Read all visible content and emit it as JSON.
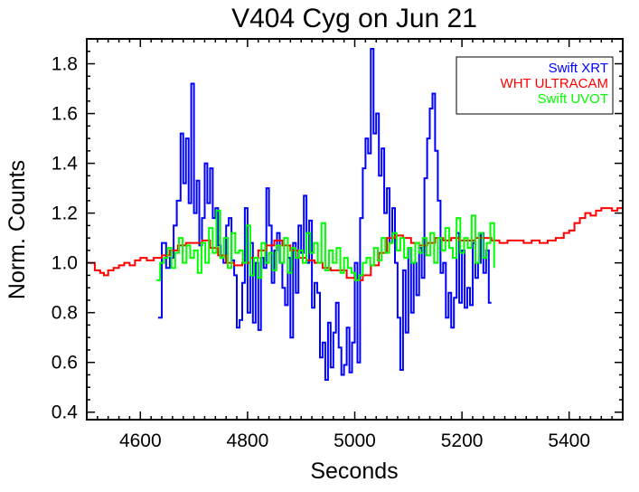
{
  "chart_data": {
    "type": "line",
    "title": "V404 Cyg on Jun 21",
    "xlabel": "Seconds",
    "ylabel": "Norm. Counts",
    "xlim": [
      4500,
      5500
    ],
    "ylim": [
      0.37,
      1.9
    ],
    "xticks": [
      4600,
      4800,
      5000,
      5200,
      5400
    ],
    "yticks": [
      0.4,
      0.6,
      0.8,
      1.0,
      1.2,
      1.4,
      1.6,
      1.8
    ],
    "ytick_labels": [
      "0.4",
      "0.6",
      "0.8",
      "1.0",
      "1.2",
      "1.4",
      "1.6",
      "1.8"
    ],
    "legend": "top-right",
    "grid": false,
    "series": [
      {
        "name": "Swift XRT",
        "color": "#0000ff",
        "step": true,
        "x": [
          4633,
          4640,
          4648,
          4655,
          4662,
          4668,
          4675,
          4680,
          4685,
          4690,
          4695,
          4700,
          4705,
          4710,
          4715,
          4720,
          4725,
          4730,
          4735,
          4740,
          4745,
          4750,
          4755,
          4760,
          4765,
          4770,
          4775,
          4780,
          4785,
          4790,
          4795,
          4800,
          4805,
          4810,
          4815,
          4820,
          4825,
          4830,
          4835,
          4840,
          4845,
          4850,
          4855,
          4860,
          4865,
          4870,
          4875,
          4880,
          4885,
          4890,
          4895,
          4900,
          4905,
          4910,
          4915,
          4920,
          4925,
          4930,
          4935,
          4940,
          4945,
          4950,
          4955,
          4960,
          4965,
          4970,
          4975,
          4980,
          4985,
          4990,
          4995,
          5000,
          5005,
          5010,
          5015,
          5020,
          5025,
          5030,
          5035,
          5040,
          5045,
          5050,
          5055,
          5060,
          5065,
          5070,
          5075,
          5080,
          5085,
          5090,
          5095,
          5100,
          5105,
          5110,
          5115,
          5120,
          5125,
          5130,
          5135,
          5140,
          5145,
          5150,
          5155,
          5160,
          5165,
          5170,
          5175,
          5180,
          5185,
          5190,
          5195,
          5200,
          5205,
          5210,
          5215,
          5220,
          5225,
          5230,
          5235,
          5240,
          5245,
          5250,
          5255
        ],
        "values": [
          0.78,
          1.08,
          0.98,
          1.02,
          1.15,
          1.25,
          1.52,
          1.32,
          1.5,
          1.24,
          1.72,
          1.2,
          1.33,
          1.07,
          1.18,
          1.4,
          1.24,
          1.38,
          1.18,
          1.22,
          1.07,
          1.02,
          1.0,
          1.15,
          1.18,
          1.01,
          0.95,
          0.74,
          0.77,
          0.92,
          1.22,
          0.8,
          1.08,
          0.76,
          1.0,
          0.73,
          1.02,
          0.98,
          1.3,
          1.15,
          0.92,
          1.05,
          1.12,
          1.0,
          0.9,
          0.83,
          1.02,
          0.7,
          1.08,
          0.88,
          1.15,
          1.04,
          1.27,
          1.0,
          1.17,
          0.82,
          0.92,
          0.88,
          0.62,
          0.68,
          0.53,
          0.76,
          0.58,
          0.72,
          0.84,
          0.66,
          0.55,
          0.59,
          0.74,
          0.56,
          0.68,
          1.0,
          0.6,
          1.18,
          1.38,
          1.5,
          1.44,
          1.86,
          1.52,
          1.6,
          1.35,
          1.46,
          1.2,
          1.3,
          1.08,
          1.22,
          1.0,
          0.78,
          0.57,
          0.97,
          0.72,
          1.06,
          0.8,
          1.0,
          0.87,
          1.06,
          0.94,
          1.34,
          1.5,
          1.62,
          1.68,
          1.45,
          1.25,
          0.96,
          1.0,
          0.78,
          0.88,
          0.74,
          0.86,
          1.12,
          0.84,
          1.05,
          0.82,
          0.9,
          0.83,
          1.08,
          0.94,
          1.0,
          1.12,
          0.96,
          1.05,
          0.84,
          0.84
        ]
      },
      {
        "name": "WHT ULTRACAM",
        "color": "#ff0000",
        "step": true,
        "x": [
          4500,
          4515,
          4525,
          4532,
          4540,
          4550,
          4560,
          4570,
          4580,
          4590,
          4600,
          4612,
          4625,
          4640,
          4655,
          4670,
          4685,
          4700,
          4715,
          4730,
          4745,
          4760,
          4775,
          4790,
          4805,
          4820,
          4835,
          4850,
          4865,
          4880,
          4895,
          4910,
          4925,
          4940,
          4955,
          4970,
          4985,
          5000,
          5015,
          5030,
          5045,
          5060,
          5075,
          5090,
          5105,
          5120,
          5135,
          5150,
          5165,
          5180,
          5195,
          5210,
          5225,
          5240,
          5255,
          5270,
          5285,
          5300,
          5315,
          5330,
          5345,
          5360,
          5375,
          5390,
          5400,
          5410,
          5420,
          5430,
          5440,
          5450,
          5460,
          5470,
          5480,
          5490,
          5500
        ],
        "values": [
          1.0,
          0.97,
          0.96,
          0.95,
          0.97,
          0.98,
          0.99,
          1.0,
          0.99,
          1.01,
          1.02,
          1.01,
          1.02,
          1.03,
          1.05,
          1.07,
          1.08,
          1.08,
          1.09,
          1.06,
          1.03,
          1.0,
          0.99,
          1.0,
          1.02,
          1.05,
          1.07,
          1.09,
          1.07,
          1.05,
          1.02,
          1.01,
          1.0,
          0.98,
          0.97,
          0.97,
          0.94,
          0.93,
          0.95,
          0.99,
          1.04,
          1.1,
          1.11,
          1.1,
          1.08,
          1.07,
          1.08,
          1.1,
          1.09,
          1.1,
          1.09,
          1.09,
          1.1,
          1.1,
          1.09,
          1.08,
          1.09,
          1.09,
          1.08,
          1.09,
          1.08,
          1.09,
          1.1,
          1.12,
          1.13,
          1.16,
          1.18,
          1.2,
          1.19,
          1.21,
          1.22,
          1.22,
          1.21,
          1.22,
          1.21
        ]
      },
      {
        "name": "Swift UVOT",
        "color": "#00ff00",
        "step": true,
        "x": [
          4630,
          4637,
          4644,
          4651,
          4658,
          4665,
          4672,
          4679,
          4686,
          4693,
          4700,
          4707,
          4714,
          4721,
          4728,
          4735,
          4742,
          4749,
          4756,
          4763,
          4770,
          4777,
          4784,
          4791,
          4798,
          4805,
          4812,
          4819,
          4826,
          4833,
          4840,
          4847,
          4854,
          4861,
          4868,
          4875,
          4882,
          4889,
          4896,
          4903,
          4910,
          4917,
          4924,
          4931,
          4938,
          4945,
          4952,
          4959,
          4966,
          4973,
          4980,
          4987,
          4994,
          5001,
          5008,
          5015,
          5022,
          5029,
          5036,
          5043,
          5050,
          5057,
          5064,
          5071,
          5078,
          5085,
          5092,
          5099,
          5106,
          5113,
          5120,
          5127,
          5134,
          5141,
          5148,
          5155,
          5162,
          5169,
          5176,
          5183,
          5190,
          5197,
          5204,
          5211,
          5218,
          5225,
          5232,
          5239,
          5246,
          5253,
          5260
        ],
        "values": [
          0.93,
          1.0,
          1.02,
          1.06,
          0.98,
          1.04,
          1.1,
          1.0,
          1.07,
          1.02,
          1.05,
          0.96,
          1.08,
          1.0,
          1.14,
          1.04,
          1.21,
          1.02,
          1.1,
          0.98,
          1.12,
          1.04,
          1.05,
          1.0,
          1.15,
          0.95,
          1.02,
          0.94,
          1.08,
          1.0,
          1.04,
          0.97,
          1.07,
          1.0,
          1.1,
          0.96,
          1.06,
          1.02,
          1.05,
          1.0,
          1.12,
          1.04,
          1.08,
          1.0,
          1.16,
          0.97,
          1.05,
          1.0,
          1.06,
          0.96,
          1.02,
          0.98,
          0.96,
          0.93,
          0.95,
          1.0,
          1.02,
          0.99,
          1.06,
          1.01,
          1.1,
          1.04,
          1.08,
          1.12,
          1.05,
          1.1,
          1.02,
          1.06,
          1.0,
          1.08,
          1.04,
          1.1,
          1.03,
          1.12,
          1.0,
          1.1,
          1.05,
          1.14,
          1.06,
          1.02,
          1.18,
          1.04,
          1.1,
          1.06,
          1.19,
          1.0,
          1.12,
          1.02,
          1.08,
          1.16,
          0.98
        ]
      }
    ]
  }
}
